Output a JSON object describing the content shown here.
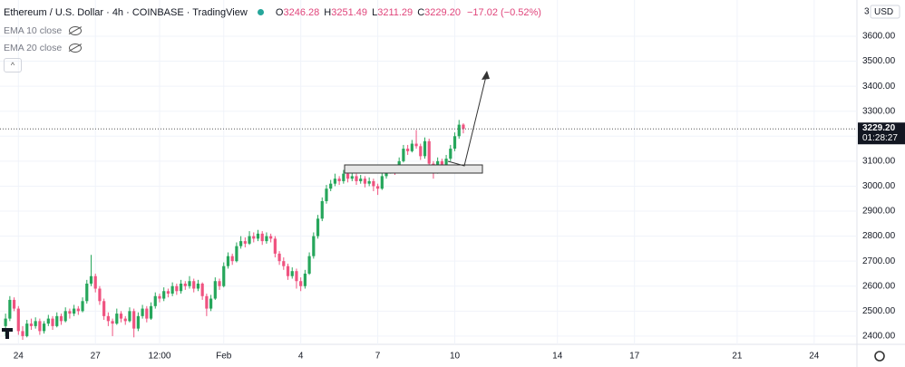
{
  "header": {
    "symbol": "Ethereum / U.S. Dollar · 4h · COINBASE · TradingView",
    "o_label": "O",
    "o": "3246.28",
    "h_label": "H",
    "h": "3251.49",
    "l_label": "L",
    "l": "3211.29",
    "c_label": "C",
    "c": "3229.20",
    "change": "−17.02 (−0.52%)"
  },
  "indicators": [
    "EMA 10 close",
    "EMA 20 close"
  ],
  "currency": "USD",
  "axis_menu": "3",
  "last_price_label": "3229.20",
  "countdown": "01:28:27",
  "chart_data": {
    "type": "candlestick",
    "up_color": "#26a65b",
    "down_color": "#ef5380",
    "grid": true,
    "xlim": [
      -1.3,
      199
    ],
    "xticks": [
      {
        "value": 3,
        "label": "24"
      },
      {
        "value": 21,
        "label": "27"
      },
      {
        "value": 36,
        "label": "12:00"
      },
      {
        "value": 51,
        "label": "Feb"
      },
      {
        "value": 69,
        "label": "4"
      },
      {
        "value": 87,
        "label": "7"
      },
      {
        "value": 105,
        "label": "10"
      },
      {
        "value": 129,
        "label": "14"
      },
      {
        "value": 147,
        "label": "17"
      },
      {
        "value": 171,
        "label": "21"
      },
      {
        "value": 189,
        "label": "24"
      }
    ],
    "ylim": [
      2367,
      3745
    ],
    "yticks": [
      {
        "value": 2400,
        "label": "2400.00"
      },
      {
        "value": 2500,
        "label": "2500.00"
      },
      {
        "value": 2600,
        "label": "2600.00"
      },
      {
        "value": 2700,
        "label": "2700.00"
      },
      {
        "value": 2800,
        "label": "2800.00"
      },
      {
        "value": 2900,
        "label": "2900.00"
      },
      {
        "value": 3000,
        "label": "3000.00"
      },
      {
        "value": 3100,
        "label": "3100.00"
      },
      {
        "value": 3200,
        "label": "3200.00"
      },
      {
        "value": 3300,
        "label": "3300.00"
      },
      {
        "value": 3400,
        "label": "3400.00"
      },
      {
        "value": 3500,
        "label": "3500.00"
      },
      {
        "value": 3600,
        "label": "3600.00"
      }
    ],
    "ohlc": [
      [
        2440,
        2490,
        2400,
        2470
      ],
      [
        2470,
        2560,
        2460,
        2545
      ],
      [
        2545,
        2555,
        2500,
        2510
      ],
      [
        2510,
        2520,
        2405,
        2420
      ],
      [
        2420,
        2440,
        2385,
        2400
      ],
      [
        2400,
        2465,
        2395,
        2450
      ],
      [
        2450,
        2470,
        2425,
        2440
      ],
      [
        2440,
        2475,
        2430,
        2460
      ],
      [
        2460,
        2470,
        2405,
        2420
      ],
      [
        2420,
        2460,
        2410,
        2450
      ],
      [
        2450,
        2485,
        2440,
        2470
      ],
      [
        2470,
        2480,
        2425,
        2440
      ],
      [
        2440,
        2495,
        2435,
        2480
      ],
      [
        2480,
        2490,
        2445,
        2460
      ],
      [
        2460,
        2515,
        2455,
        2500
      ],
      [
        2500,
        2510,
        2470,
        2490
      ],
      [
        2490,
        2525,
        2480,
        2510
      ],
      [
        2510,
        2520,
        2485,
        2500
      ],
      [
        2500,
        2555,
        2495,
        2540
      ],
      [
        2540,
        2625,
        2530,
        2610
      ],
      [
        2610,
        2725,
        2600,
        2640
      ],
      [
        2640,
        2650,
        2575,
        2590
      ],
      [
        2590,
        2600,
        2525,
        2540
      ],
      [
        2540,
        2550,
        2465,
        2480
      ],
      [
        2480,
        2495,
        2440,
        2460
      ],
      [
        2460,
        2470,
        2400,
        2450
      ],
      [
        2450,
        2510,
        2445,
        2490
      ],
      [
        2490,
        2500,
        2455,
        2470
      ],
      [
        2470,
        2480,
        2445,
        2460
      ],
      [
        2460,
        2515,
        2455,
        2500
      ],
      [
        2500,
        2510,
        2395,
        2430
      ],
      [
        2430,
        2495,
        2420,
        2480
      ],
      [
        2480,
        2525,
        2470,
        2510
      ],
      [
        2510,
        2520,
        2455,
        2470
      ],
      [
        2470,
        2535,
        2465,
        2520
      ],
      [
        2520,
        2575,
        2510,
        2560
      ],
      [
        2560,
        2570,
        2535,
        2550
      ],
      [
        2550,
        2595,
        2540,
        2580
      ],
      [
        2580,
        2590,
        2555,
        2570
      ],
      [
        2570,
        2615,
        2560,
        2600
      ],
      [
        2600,
        2610,
        2565,
        2580
      ],
      [
        2580,
        2625,
        2570,
        2610
      ],
      [
        2610,
        2620,
        2585,
        2600
      ],
      [
        2600,
        2640,
        2590,
        2620
      ],
      [
        2620,
        2630,
        2575,
        2590
      ],
      [
        2590,
        2625,
        2580,
        2610
      ],
      [
        2610,
        2615,
        2545,
        2560
      ],
      [
        2560,
        2570,
        2480,
        2510
      ],
      [
        2510,
        2565,
        2500,
        2550
      ],
      [
        2550,
        2635,
        2545,
        2620
      ],
      [
        2620,
        2630,
        2585,
        2600
      ],
      [
        2600,
        2695,
        2595,
        2680
      ],
      [
        2680,
        2735,
        2670,
        2720
      ],
      [
        2720,
        2730,
        2685,
        2700
      ],
      [
        2700,
        2775,
        2695,
        2760
      ],
      [
        2760,
        2800,
        2750,
        2780
      ],
      [
        2780,
        2795,
        2755,
        2770
      ],
      [
        2770,
        2820,
        2765,
        2800
      ],
      [
        2800,
        2815,
        2775,
        2790
      ],
      [
        2790,
        2825,
        2780,
        2810
      ],
      [
        2810,
        2820,
        2765,
        2780
      ],
      [
        2780,
        2815,
        2770,
        2800
      ],
      [
        2800,
        2810,
        2775,
        2790
      ],
      [
        2790,
        2800,
        2715,
        2730
      ],
      [
        2730,
        2740,
        2685,
        2700
      ],
      [
        2700,
        2715,
        2665,
        2680
      ],
      [
        2680,
        2690,
        2625,
        2640
      ],
      [
        2640,
        2675,
        2630,
        2660
      ],
      [
        2660,
        2670,
        2590,
        2620
      ],
      [
        2620,
        2635,
        2580,
        2600
      ],
      [
        2600,
        2665,
        2590,
        2650
      ],
      [
        2650,
        2735,
        2645,
        2720
      ],
      [
        2720,
        2815,
        2710,
        2800
      ],
      [
        2800,
        2885,
        2790,
        2870
      ],
      [
        2870,
        2955,
        2860,
        2940
      ],
      [
        2940,
        3005,
        2930,
        2990
      ],
      [
        2990,
        3025,
        2980,
        3010
      ],
      [
        3010,
        3050,
        3000,
        3030
      ],
      [
        3030,
        3040,
        3005,
        3020
      ],
      [
        3020,
        3065,
        3010,
        3050
      ],
      [
        3050,
        3060,
        3015,
        3030
      ],
      [
        3030,
        3055,
        3020,
        3040
      ],
      [
        3040,
        3050,
        3005,
        3020
      ],
      [
        3020,
        3045,
        3010,
        3030
      ],
      [
        3030,
        3040,
        2995,
        3010
      ],
      [
        3010,
        3035,
        3000,
        3020
      ],
      [
        3020,
        3030,
        2980,
        3000
      ],
      [
        3000,
        3010,
        2965,
        2990
      ],
      [
        2990,
        3055,
        2985,
        3040
      ],
      [
        3040,
        3075,
        3030,
        3060
      ],
      [
        3060,
        3085,
        3050,
        3070
      ],
      [
        3070,
        3080,
        3045,
        3060
      ],
      [
        3060,
        3115,
        3055,
        3100
      ],
      [
        3100,
        3165,
        3095,
        3150
      ],
      [
        3150,
        3165,
        3125,
        3140
      ],
      [
        3140,
        3185,
        3135,
        3170
      ],
      [
        3170,
        3225,
        3150,
        3160
      ],
      [
        3160,
        3170,
        3105,
        3120
      ],
      [
        3120,
        3195,
        3110,
        3180
      ],
      [
        3180,
        3190,
        3075,
        3090
      ],
      [
        3090,
        3100,
        3030,
        3060
      ],
      [
        3060,
        3115,
        3050,
        3100
      ],
      [
        3100,
        3110,
        3065,
        3080
      ],
      [
        3080,
        3125,
        3070,
        3110
      ],
      [
        3110,
        3165,
        3100,
        3150
      ],
      [
        3150,
        3215,
        3140,
        3200
      ],
      [
        3200,
        3265,
        3190,
        3246
      ],
      [
        3246.28,
        3251.49,
        3211.29,
        3229.2
      ]
    ]
  }
}
